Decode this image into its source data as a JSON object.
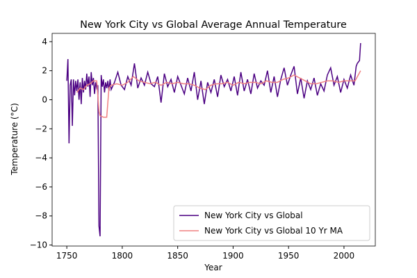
{
  "chart_data": {
    "type": "line",
    "title": "New York City vs Global Average Annual Temperature",
    "xlabel": "Year",
    "ylabel": "Temperature (°C)",
    "xlim": [
      1736.75,
      2028.25
    ],
    "ylim": [
      -10.07,
      4.57
    ],
    "xticks": [
      1750,
      1800,
      1850,
      1900,
      1950,
      2000
    ],
    "yticks": [
      {
        "value": -10,
        "label": "−10"
      },
      {
        "value": -8,
        "label": "−8"
      },
      {
        "value": -6,
        "label": "−6"
      },
      {
        "value": -4,
        "label": "−4"
      },
      {
        "value": -2,
        "label": "−2"
      },
      0,
      2,
      4
    ],
    "legend": "lower right",
    "series": [
      {
        "name": "New York City vs Global",
        "color": "#4b0082",
        "x": [
          1750,
          1751,
          1752,
          1753,
          1754,
          1755,
          1756,
          1757,
          1758,
          1759,
          1760,
          1761,
          1762,
          1763,
          1764,
          1765,
          1766,
          1767,
          1768,
          1769,
          1770,
          1771,
          1772,
          1773,
          1774,
          1775,
          1776,
          1777,
          1778,
          1779,
          1780,
          1781,
          1782,
          1783,
          1784,
          1785,
          1786,
          1787,
          1788,
          1789,
          1790,
          1793,
          1796,
          1799,
          1802,
          1805,
          1808,
          1811,
          1814,
          1817,
          1820,
          1823,
          1826,
          1829,
          1832,
          1835,
          1838,
          1841,
          1844,
          1847,
          1850,
          1853,
          1856,
          1859,
          1862,
          1865,
          1868,
          1871,
          1874,
          1877,
          1880,
          1883,
          1886,
          1889,
          1892,
          1895,
          1898,
          1901,
          1904,
          1907,
          1910,
          1913,
          1916,
          1919,
          1922,
          1925,
          1928,
          1931,
          1934,
          1937,
          1940,
          1943,
          1946,
          1949,
          1952,
          1955,
          1958,
          1961,
          1964,
          1967,
          1970,
          1973,
          1976,
          1979,
          1982,
          1985,
          1988,
          1991,
          1994,
          1997,
          2000,
          2003,
          2006,
          2009,
          2011,
          2012,
          2014,
          2015
        ],
        "values": [
          1.3,
          2.8,
          -3.0,
          1.0,
          1.4,
          -1.8,
          1.4,
          0.3,
          1.3,
          0.6,
          1.4,
          0.0,
          1.2,
          -0.3,
          1.5,
          0.5,
          1.3,
          0.7,
          1.8,
          0.9,
          1.6,
          0.2,
          1.9,
          1.0,
          1.5,
          0.4,
          1.2,
          0.8,
          1.0,
          -8.7,
          -9.4,
          1.7,
          0.9,
          1.4,
          0.5,
          1.2,
          0.8,
          1.3,
          0.6,
          1.4,
          0.7,
          1.2,
          1.9,
          1.0,
          0.7,
          1.6,
          1.0,
          2.5,
          0.8,
          1.5,
          1.0,
          1.9,
          1.1,
          0.9,
          1.6,
          -0.2,
          1.8,
          0.9,
          1.4,
          0.5,
          1.6,
          1.0,
          0.4,
          1.5,
          0.6,
          1.9,
          0.0,
          1.3,
          -0.3,
          1.2,
          0.5,
          1.4,
          0.2,
          1.7,
          0.9,
          1.4,
          0.6,
          1.6,
          0.3,
          1.9,
          0.6,
          1.4,
          0.4,
          1.8,
          0.8,
          1.3,
          1.0,
          2.0,
          0.5,
          1.6,
          0.2,
          1.4,
          2.2,
          1.0,
          1.7,
          2.3,
          0.4,
          1.5,
          0.1,
          1.3,
          0.7,
          1.5,
          0.3,
          1.1,
          0.6,
          1.7,
          2.2,
          1.0,
          1.6,
          0.5,
          1.4,
          0.8,
          1.7,
          1.0,
          2.3,
          2.5,
          2.7,
          3.9
        ]
      },
      {
        "name": "New York City vs Global 10 Yr MA",
        "color": "#f08080",
        "x": [
          1759,
          1762,
          1765,
          1768,
          1771,
          1774,
          1777,
          1779,
          1780,
          1783,
          1786,
          1788,
          1790,
          1795,
          1800,
          1805,
          1810,
          1815,
          1820,
          1825,
          1830,
          1835,
          1840,
          1845,
          1850,
          1855,
          1860,
          1865,
          1870,
          1875,
          1880,
          1885,
          1890,
          1895,
          1900,
          1905,
          1910,
          1915,
          1920,
          1925,
          1930,
          1935,
          1940,
          1945,
          1950,
          1955,
          1960,
          1965,
          1970,
          1975,
          1980,
          1985,
          1990,
          1995,
          2000,
          2005,
          2010,
          2015
        ],
        "values": [
          0.5,
          0.8,
          0.7,
          1.0,
          1.1,
          1.3,
          1.3,
          -0.8,
          -1.1,
          -1.2,
          -1.2,
          0.8,
          1.0,
          1.1,
          1.0,
          1.2,
          1.6,
          1.3,
          1.2,
          1.1,
          1.2,
          1.0,
          1.2,
          1.1,
          1.2,
          1.1,
          1.1,
          1.0,
          0.8,
          0.7,
          1.0,
          1.1,
          1.1,
          1.2,
          1.0,
          1.2,
          1.1,
          1.2,
          1.2,
          1.1,
          1.3,
          1.2,
          1.2,
          1.4,
          1.5,
          1.7,
          1.5,
          1.3,
          1.1,
          1.1,
          1.2,
          1.3,
          1.3,
          1.2,
          1.3,
          1.3,
          1.3,
          2.0
        ]
      }
    ]
  }
}
